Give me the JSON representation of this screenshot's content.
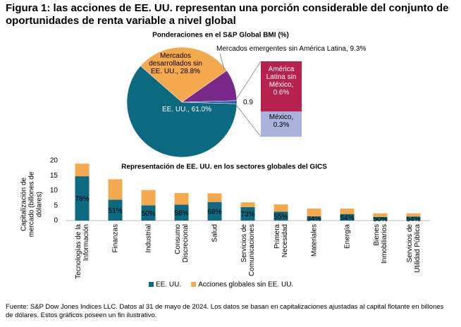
{
  "title": "Figura 1: las acciones de EE. UU. representan una porción considerable del conjunto de oportunidades de renta variable a nivel global",
  "footnote": "Fuente: S&P Dow Jones Indices LLC. Datos al 31 de mayo de 2024. Los datos se basan en capitalizaciones ajustadas al capital flotante en billones de dólares. Estos gráficos poseen un fin ilustrativo.",
  "chart_data": [
    {
      "type": "pie",
      "title": "Ponderaciones en el S&P Global BMI (%)",
      "values": [
        61.0,
        28.8,
        9.3,
        0.9
      ],
      "value_labels": [
        "EE. UU., 61.0%",
        "Mercados desarrollados sin EE. UU., 28.8%",
        "Mercados emergentes sin América Latina, 9.3%",
        "0.9"
      ],
      "colors": [
        "#0b6a80",
        "#f4a94e",
        "#772888",
        "#2f5fa6"
      ],
      "breakdown": {
        "values": [
          0.6,
          0.3
        ],
        "value_labels": [
          "América Latina sin México, 0.6%",
          "México, 0.3%"
        ],
        "colors": [
          "#b7214e",
          "#a9b3dd"
        ]
      }
    },
    {
      "type": "bar",
      "stacked": true,
      "title": "Representación de EE. UU. en los sectores globales del GICS",
      "ylabel": "Capitalización de mercado (billones de dólares)",
      "categories": [
        "Tecnologías de la Información",
        "Finanzas",
        "Industrial",
        "Consumo Discrecional",
        "Salud",
        "Servicios de Comunicaciones",
        "Primera Necesidad",
        "Materiales",
        "Energía",
        "Bienes Inmobiliarios",
        "Servicios de Utilidad Pública"
      ],
      "series": [
        {
          "name": "EE. UU.",
          "color": "#0b6a80",
          "values": [
            14.8,
            7.0,
            5.1,
            5.3,
            6.2,
            4.5,
            3.0,
            1.4,
            2.2,
            1.2,
            1.3
          ]
        },
        {
          "name": "Acciones globales sin EE. UU.",
          "color": "#f4a94e",
          "values": [
            4.2,
            6.8,
            5.1,
            3.9,
            2.9,
            1.6,
            2.4,
            2.6,
            1.8,
            1.2,
            1.1
          ]
        }
      ],
      "share_labels": [
        "78%",
        "51%",
        "50%",
        "58%",
        "68%",
        "73%",
        "55%",
        "34%",
        "54%",
        "50%",
        "54%"
      ],
      "ylim": [
        0,
        20
      ],
      "yticks": [
        0,
        5,
        10,
        15,
        20
      ],
      "legend": "bottom"
    }
  ]
}
